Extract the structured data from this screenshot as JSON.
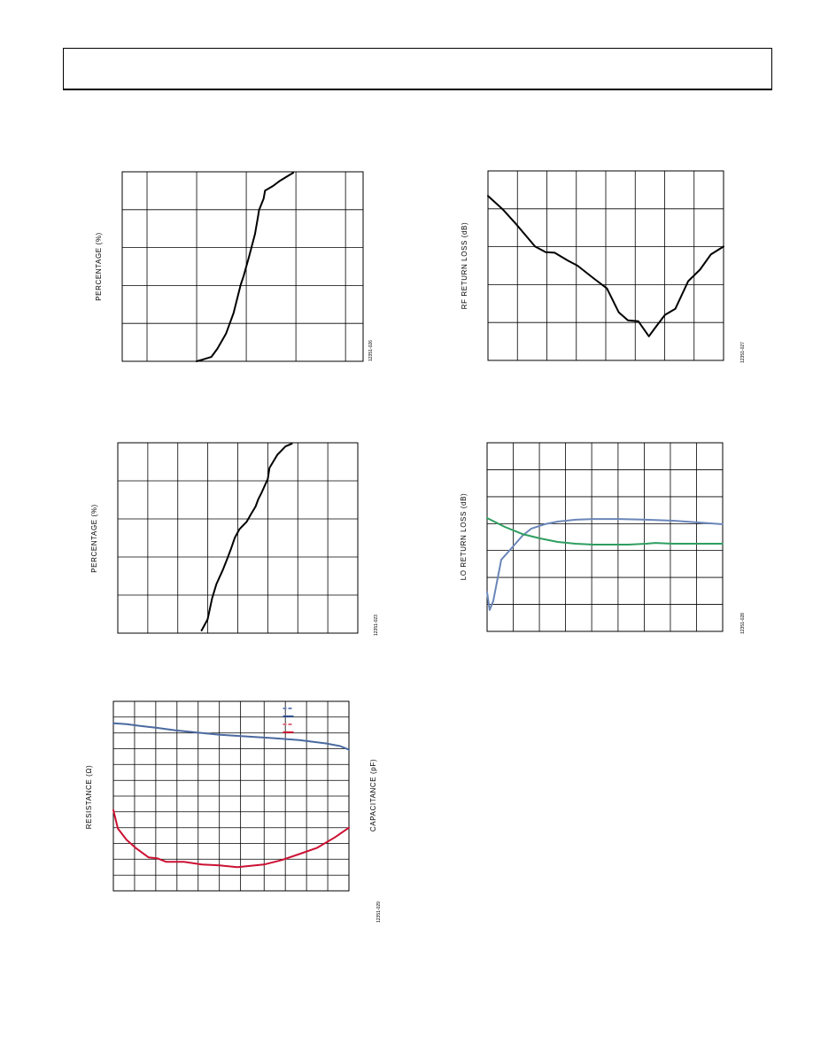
{
  "charts": [
    {
      "id": "pct1",
      "type": "line",
      "ylabel": "PERCENTAGE (%)",
      "ylabel_right": "",
      "figure_id": "12351-026",
      "vlines": [
        0.103,
        0.309,
        0.515,
        0.721,
        0.927
      ],
      "hlines": [
        0.2,
        0.4,
        0.6,
        0.8
      ],
      "series": [
        {
          "name": "",
          "color": "#000000",
          "x": [
            0.309,
            0.334,
            0.37,
            0.395,
            0.431,
            0.462,
            0.492,
            0.503,
            0.525,
            0.551,
            0.564,
            0.568,
            0.587,
            0.593,
            0.626,
            0.655,
            0.691,
            0.71
          ],
          "y": [
            0,
            0.009,
            0.023,
            0.066,
            0.146,
            0.254,
            0.404,
            0.446,
            0.545,
            0.671,
            0.765,
            0.798,
            0.859,
            0.901,
            0.925,
            0.953,
            0.981,
            0.995
          ]
        }
      ]
    },
    {
      "id": "rf",
      "type": "line",
      "ylabel": "RF RETURN LOSS (dB)",
      "ylabel_right": "",
      "figure_id": "12351-027",
      "vlines": [
        0.125,
        0.25,
        0.375,
        0.5,
        0.625,
        0.75,
        0.875
      ],
      "hlines": [
        0.2,
        0.4,
        0.6,
        0.8
      ],
      "series": [
        {
          "name": "",
          "color": "#000000",
          "x": [
            0,
            0.062,
            0.117,
            0.2,
            0.245,
            0.283,
            0.34,
            0.38,
            0.45,
            0.505,
            0.555,
            0.594,
            0.638,
            0.683,
            0.705,
            0.751,
            0.795,
            0.85,
            0.9,
            0.946,
            1.0
          ],
          "y": [
            0.868,
            0.798,
            0.723,
            0.601,
            0.571,
            0.568,
            0.526,
            0.5,
            0.432,
            0.38,
            0.254,
            0.211,
            0.207,
            0.127,
            0.164,
            0.24,
            0.272,
            0.418,
            0.479,
            0.559,
            0.601
          ]
        }
      ]
    },
    {
      "id": "pct2",
      "type": "line",
      "ylabel": "PERCENTAGE (%)",
      "ylabel_right": "",
      "figure_id": "12351-023",
      "vlines": [
        0.125,
        0.25,
        0.375,
        0.5,
        0.625,
        0.75,
        0.875
      ],
      "hlines": [
        0.2,
        0.4,
        0.6,
        0.8
      ],
      "series": [
        {
          "name": "",
          "color": "#000000",
          "x": [
            0.349,
            0.374,
            0.393,
            0.411,
            0.437,
            0.455,
            0.471,
            0.488,
            0.507,
            0.537,
            0.555,
            0.574,
            0.585,
            0.6,
            0.625,
            0.632,
            0.665,
            0.699,
            0.725
          ],
          "y": [
            0.014,
            0.072,
            0.183,
            0.258,
            0.33,
            0.387,
            0.44,
            0.502,
            0.546,
            0.585,
            0.625,
            0.665,
            0.702,
            0.74,
            0.81,
            0.868,
            0.937,
            0.981,
            0.995
          ]
        }
      ]
    },
    {
      "id": "lo",
      "type": "line",
      "ylabel": "LO RETURN LOSS (dB)",
      "ylabel_right": "",
      "figure_id": "12351-028",
      "vlines": [
        0.111,
        0.222,
        0.333,
        0.444,
        0.556,
        0.667,
        0.778,
        0.889
      ],
      "hlines": [
        0.143,
        0.286,
        0.429,
        0.571,
        0.714,
        0.857
      ],
      "series": [
        {
          "name": "",
          "color": "#6a86b8",
          "x": [
            0,
            0.011,
            0.026,
            0.06,
            0.094,
            0.15,
            0.188,
            0.244,
            0.3,
            0.375,
            0.45,
            0.563,
            0.676,
            0.789,
            0.902,
            1.0
          ],
          "y": [
            0.207,
            0.113,
            0.16,
            0.38,
            0.427,
            0.507,
            0.545,
            0.568,
            0.582,
            0.592,
            0.596,
            0.596,
            0.592,
            0.587,
            0.577,
            0.568
          ]
        },
        {
          "name": "",
          "color": "#2e9e60",
          "x": [
            0,
            0.075,
            0.15,
            0.225,
            0.3,
            0.375,
            0.45,
            0.525,
            0.6,
            0.676,
            0.714,
            0.789,
            0.902,
            1.0
          ],
          "y": [
            0.601,
            0.554,
            0.516,
            0.493,
            0.474,
            0.465,
            0.46,
            0.46,
            0.46,
            0.465,
            0.469,
            0.465,
            0.465,
            0.465
          ]
        }
      ]
    },
    {
      "id": "rc",
      "type": "line",
      "ylabel": "RESISTANCE (Ω)",
      "ylabel_right": "CAPACITANCE (pF)",
      "figure_id": "12351-029",
      "vlines": [
        0.09,
        0.18,
        0.27,
        0.36,
        0.45,
        0.54,
        0.64,
        0.73,
        0.82,
        0.91
      ],
      "hlines": [
        0.083,
        0.167,
        0.25,
        0.333,
        0.417,
        0.5,
        0.583,
        0.667,
        0.75,
        0.833,
        0.917
      ],
      "legend": [
        {
          "color": "#6a86b8",
          "dashed": true
        },
        {
          "color": "#2f4f8f",
          "dashed": false
        },
        {
          "color": "#e06c80",
          "dashed": true
        },
        {
          "color": "#cc1133",
          "dashed": false
        }
      ],
      "series": [
        {
          "name": "",
          "color": "#4a6aa0",
          "x": [
            0,
            0.056,
            0.113,
            0.188,
            0.263,
            0.338,
            0.451,
            0.564,
            0.676,
            0.789,
            0.902,
            0.962,
            1.0
          ],
          "y": [
            0.884,
            0.88,
            0.87,
            0.86,
            0.847,
            0.838,
            0.824,
            0.815,
            0.806,
            0.796,
            0.778,
            0.764,
            0.745
          ]
        },
        {
          "name": "",
          "color": "#cc1133",
          "x": [
            0,
            0.019,
            0.056,
            0.094,
            0.15,
            0.188,
            0.225,
            0.3,
            0.376,
            0.451,
            0.526,
            0.564,
            0.639,
            0.714,
            0.789,
            0.865,
            0.94,
            1.0
          ],
          "y": [
            0.426,
            0.329,
            0.269,
            0.227,
            0.176,
            0.171,
            0.153,
            0.153,
            0.139,
            0.134,
            0.125,
            0.13,
            0.139,
            0.162,
            0.194,
            0.227,
            0.282,
            0.333
          ]
        }
      ]
    }
  ]
}
